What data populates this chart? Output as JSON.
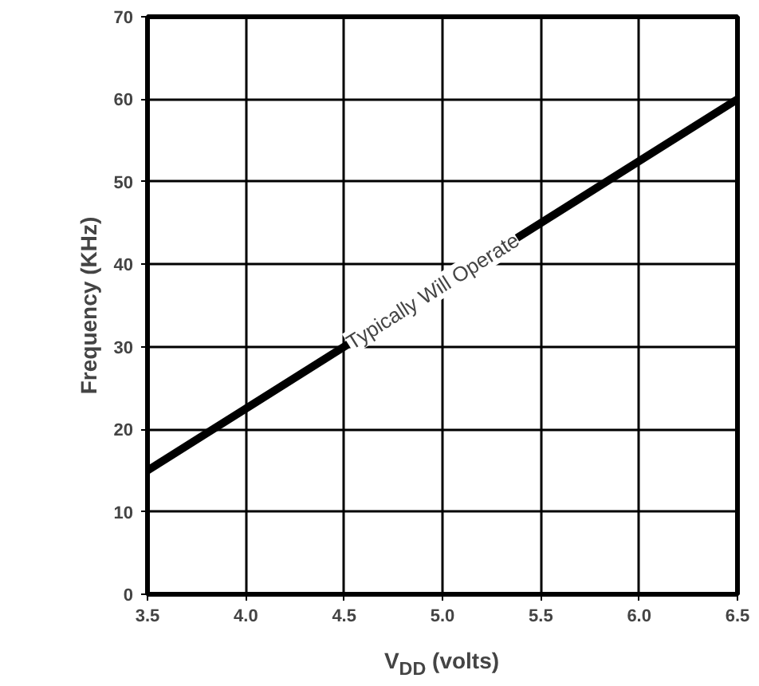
{
  "chart_data": {
    "type": "line",
    "xlabel": "V$_{DD}$ (volts)",
    "ylabel": "Frequency (KHz)",
    "x": [
      3.5,
      6.5
    ],
    "series": [
      {
        "color": "#000000",
        "values": [
          15,
          60
        ]
      }
    ],
    "xlim": [
      3.5,
      6.5
    ],
    "ylim": [
      0,
      70
    ],
    "xticks": [
      3.5,
      {
        "value": 4,
        "label": "4.0"
      },
      4.5,
      {
        "value": 5,
        "label": "5.0"
      },
      5.5,
      {
        "value": 6,
        "label": "6.0"
      },
      6.5
    ],
    "yticks": [
      0,
      10,
      20,
      30,
      40,
      50,
      60,
      70
    ],
    "annotations": [
      {
        "text": "Typically Will Operate",
        "x": 4.95,
        "y": 36.75
      }
    ],
    "grid": true,
    "marker": "none",
    "line_style": "solid"
  }
}
